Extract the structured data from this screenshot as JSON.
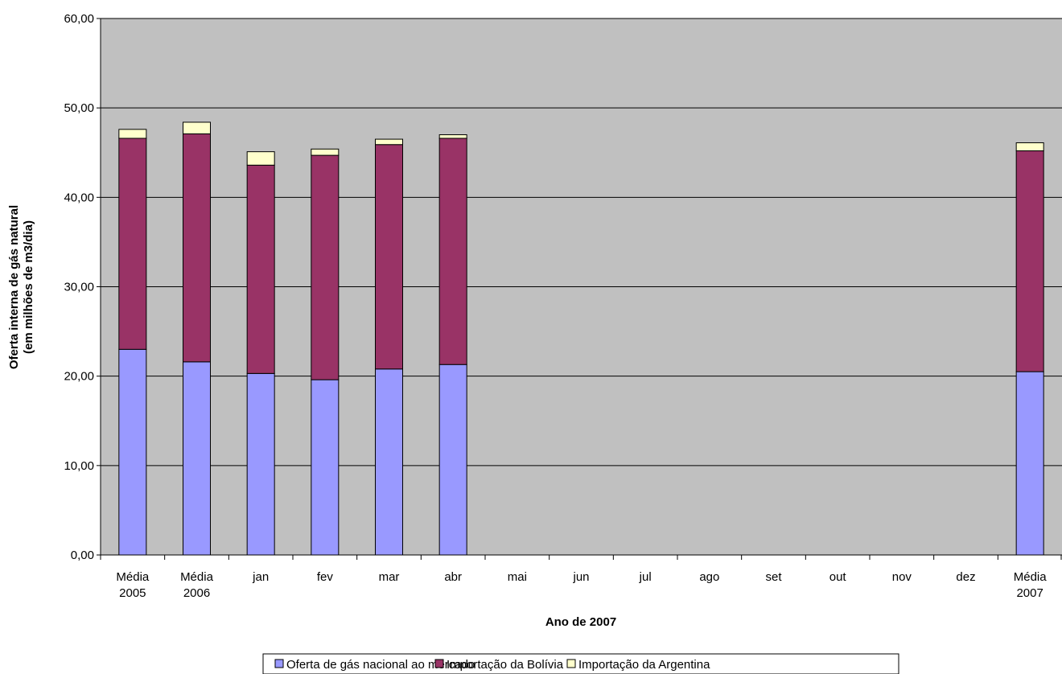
{
  "chart_data": {
    "type": "bar",
    "stacked": true,
    "categories": [
      [
        "Média",
        "2005"
      ],
      [
        "Média",
        "2006"
      ],
      [
        "jan"
      ],
      [
        "fev"
      ],
      [
        "mar"
      ],
      [
        "abr"
      ],
      [
        "mai"
      ],
      [
        "jun"
      ],
      [
        "jul"
      ],
      [
        "ago"
      ],
      [
        "set"
      ],
      [
        "out"
      ],
      [
        "nov"
      ],
      [
        "dez"
      ],
      [
        "Média",
        "2007"
      ]
    ],
    "series": [
      {
        "name": "Oferta de gás nacional ao mercado",
        "color": "#9999ff",
        "values": [
          23.0,
          21.6,
          20.3,
          19.6,
          20.8,
          21.3,
          null,
          null,
          null,
          null,
          null,
          null,
          null,
          null,
          20.5
        ]
      },
      {
        "name": "Importação da Bolívia",
        "color": "#993366",
        "values": [
          23.6,
          25.5,
          23.3,
          25.1,
          25.1,
          25.3,
          null,
          null,
          null,
          null,
          null,
          null,
          null,
          null,
          24.7
        ]
      },
      {
        "name": "Importação da Argentina",
        "color": "#ffffcc",
        "values": [
          1.0,
          1.3,
          1.5,
          0.7,
          0.6,
          0.4,
          null,
          null,
          null,
          null,
          null,
          null,
          null,
          null,
          0.9
        ]
      }
    ],
    "title": "",
    "xlabel": "Ano de 2007",
    "ylabel": [
      "Oferta interna de gás natural",
      "(em milhões de m3/dia)"
    ],
    "ylim": [
      0,
      60
    ],
    "yticks": [
      "0,00",
      "10,00",
      "20,00",
      "30,00",
      "40,00",
      "50,00",
      "60,00"
    ],
    "grid": true,
    "plot_background": "#c0c0c0",
    "legend_position": "bottom"
  }
}
